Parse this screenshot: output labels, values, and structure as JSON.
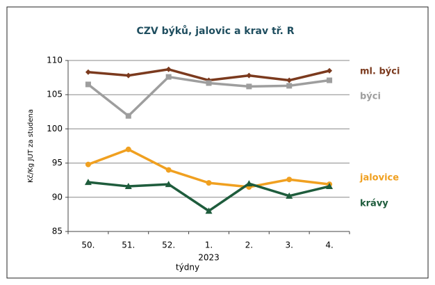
{
  "chart_data": {
    "type": "line",
    "title": "CZV býků, jalovic a krav tř. R",
    "y_label": "Kč/Kg JUT za studena",
    "x_label": "týdny",
    "x_annotation": "2023",
    "categories": [
      "50.",
      "51.",
      "52.",
      "1.",
      "2.",
      "3.",
      "4."
    ],
    "series": [
      {
        "name": "ml. býci",
        "color": "#7b3a1e",
        "marker": "diamond",
        "values": [
          108.3,
          107.8,
          108.7,
          107.1,
          107.8,
          107.1,
          108.5
        ]
      },
      {
        "name": "býci",
        "color": "#9e9e9e",
        "marker": "square",
        "values": [
          106.5,
          101.9,
          107.6,
          106.7,
          106.2,
          106.3,
          107.1
        ]
      },
      {
        "name": "jalovice",
        "color": "#f0a020",
        "marker": "circle",
        "values": [
          94.8,
          97.0,
          94.0,
          92.1,
          91.5,
          92.6,
          91.9
        ]
      },
      {
        "name": "krávy",
        "color": "#1e5c3c",
        "marker": "triangle",
        "values": [
          92.2,
          91.6,
          91.9,
          88.0,
          92.0,
          90.2,
          91.6
        ]
      }
    ],
    "ylim": [
      85,
      110
    ],
    "yticks": [
      85,
      90,
      95,
      100,
      105,
      110
    ],
    "grid": true
  }
}
